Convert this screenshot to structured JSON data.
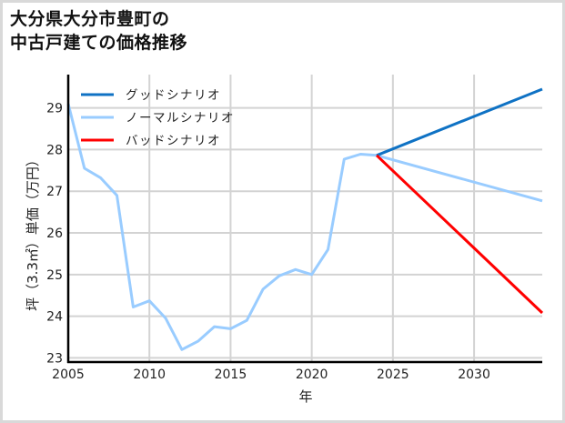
{
  "title": {
    "line1": "大分県大分市豊町の",
    "line2": "中古戸建ての価格推移"
  },
  "colors": {
    "good": "#0f72c4",
    "normal": "#99ccff",
    "bad": "#ff0000",
    "grid": "#d3d3d3",
    "axis": "#000000",
    "border": "#d9d9d9"
  },
  "chart_data": {
    "type": "line",
    "title": "大分県大分市豊町の中古戸建ての価格推移",
    "xlabel": "年",
    "ylabel": "坪（3.3㎡）単価（万円）",
    "xlim": [
      2005,
      2034.2
    ],
    "ylim": [
      22.9,
      29.8
    ],
    "x_ticks": [
      2005,
      2010,
      2015,
      2020,
      2025,
      2030
    ],
    "y_ticks": [
      23,
      24,
      25,
      26,
      27,
      28,
      29
    ],
    "grid": true,
    "legend_position": "upper left",
    "legend": [
      "グッドシナリオ",
      "ノーマルシナリオ",
      "バッドシナリオ"
    ],
    "series": [
      {
        "name": "グッドシナリオ",
        "color": "#0f72c4",
        "x": [
          2024,
          2034.2
        ],
        "values": [
          27.86,
          29.45
        ]
      },
      {
        "name": "ノーマルシナリオ",
        "color": "#99ccff",
        "x": [
          2005,
          2006,
          2007,
          2008,
          2009,
          2010,
          2011,
          2012,
          2013,
          2014,
          2015,
          2016,
          2017,
          2018,
          2019,
          2020,
          2021,
          2022,
          2023,
          2024,
          2034.2
        ],
        "values": [
          29.1,
          27.55,
          27.32,
          26.9,
          24.22,
          24.37,
          23.95,
          23.2,
          23.4,
          23.75,
          23.7,
          23.9,
          24.65,
          24.97,
          25.12,
          25.0,
          25.6,
          27.77,
          27.89,
          27.86,
          26.77
        ]
      },
      {
        "name": "バッドシナリオ",
        "color": "#ff0000",
        "x": [
          2024,
          2034.2
        ],
        "values": [
          27.86,
          24.08
        ]
      }
    ]
  }
}
